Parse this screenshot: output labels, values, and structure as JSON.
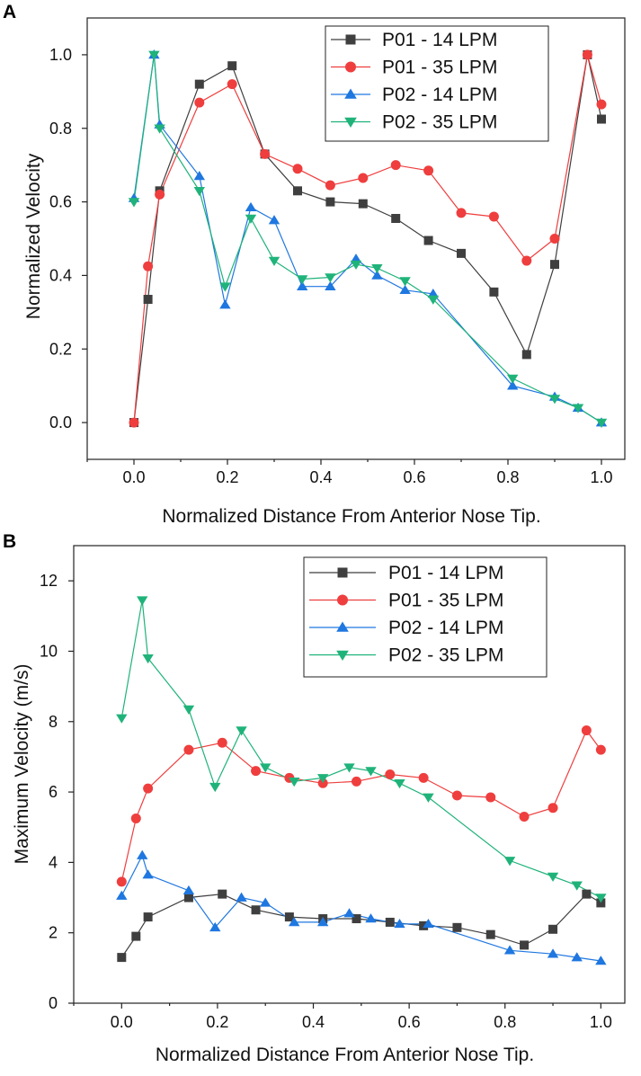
{
  "chart_data": [
    {
      "panel": "A",
      "type": "line",
      "xlabel": "Normalized Distance From Anterior Nose Tip.",
      "ylabel": "Normalized Velocity",
      "xlim": [
        -0.1,
        1.05
      ],
      "ylim": [
        -0.1,
        1.1
      ],
      "xticks": [
        "0.0",
        "0.2",
        "0.4",
        "0.6",
        "0.8",
        "1.0"
      ],
      "yticks": [
        "0.0",
        "0.2",
        "0.4",
        "0.6",
        "0.8",
        "1.0"
      ],
      "xtick_values": [
        0,
        0.2,
        0.4,
        0.6,
        0.8,
        1.0
      ],
      "ytick_values": [
        0,
        0.2,
        0.4,
        0.6,
        0.8,
        1.0
      ],
      "legend_position": "top-right",
      "series": [
        {
          "name": "P01 - 14 LPM",
          "color": "#3f3f3f",
          "marker": "square",
          "x": [
            0.0,
            0.03,
            0.055,
            0.14,
            0.21,
            0.28,
            0.35,
            0.42,
            0.49,
            0.56,
            0.63,
            0.7,
            0.77,
            0.84,
            0.9,
            0.97,
            1.0
          ],
          "y": [
            0.0,
            0.335,
            0.63,
            0.92,
            0.97,
            0.73,
            0.63,
            0.6,
            0.595,
            0.555,
            0.495,
            0.46,
            0.355,
            0.185,
            0.43,
            1.0,
            0.825
          ]
        },
        {
          "name": "P01 - 35 LPM",
          "color": "#ef3e3e",
          "marker": "circle",
          "x": [
            0.0,
            0.03,
            0.055,
            0.14,
            0.21,
            0.28,
            0.35,
            0.42,
            0.49,
            0.56,
            0.63,
            0.7,
            0.77,
            0.84,
            0.9,
            0.97,
            1.0
          ],
          "y": [
            0.0,
            0.425,
            0.62,
            0.87,
            0.92,
            0.73,
            0.69,
            0.645,
            0.665,
            0.7,
            0.685,
            0.57,
            0.56,
            0.44,
            0.5,
            1.0,
            0.865
          ]
        },
        {
          "name": "P02 - 14 LPM",
          "color": "#1f77e0",
          "marker": "triangle-up",
          "x": [
            0.0,
            0.043,
            0.055,
            0.14,
            0.195,
            0.25,
            0.3,
            0.36,
            0.42,
            0.475,
            0.52,
            0.58,
            0.64,
            0.81,
            0.9,
            0.95,
            1.0
          ],
          "y": [
            0.61,
            1.0,
            0.81,
            0.67,
            0.32,
            0.585,
            0.55,
            0.37,
            0.37,
            0.445,
            0.4,
            0.36,
            0.35,
            0.1,
            0.07,
            0.04,
            0.0
          ]
        },
        {
          "name": "P02 - 35 LPM",
          "color": "#1fb37a",
          "marker": "triangle-down",
          "x": [
            0.0,
            0.043,
            0.055,
            0.14,
            0.195,
            0.25,
            0.3,
            0.36,
            0.42,
            0.475,
            0.52,
            0.58,
            0.64,
            0.81,
            0.9,
            0.95,
            1.0
          ],
          "y": [
            0.6,
            1.0,
            0.8,
            0.63,
            0.37,
            0.555,
            0.44,
            0.39,
            0.395,
            0.43,
            0.42,
            0.385,
            0.335,
            0.12,
            0.065,
            0.04,
            0.0
          ]
        }
      ]
    },
    {
      "panel": "B",
      "type": "line",
      "xlabel": "Normalized Distance From Anterior Nose Tip.",
      "ylabel": "Maximum Velocity  (m/s)",
      "xlim": [
        -0.1,
        1.05
      ],
      "ylim": [
        0,
        13
      ],
      "xticks": [
        "0.0",
        "0.2",
        "0.4",
        "0.6",
        "0.8",
        "1.0"
      ],
      "yticks": [
        "0",
        "2",
        "4",
        "6",
        "8",
        "10",
        "12"
      ],
      "xtick_values": [
        0,
        0.2,
        0.4,
        0.6,
        0.8,
        1.0
      ],
      "ytick_values": [
        0,
        2,
        4,
        6,
        8,
        10,
        12
      ],
      "legend_position": "top-right",
      "series": [
        {
          "name": "P01 - 14 LPM",
          "color": "#3f3f3f",
          "marker": "square",
          "x": [
            0.0,
            0.03,
            0.055,
            0.14,
            0.21,
            0.28,
            0.35,
            0.42,
            0.49,
            0.56,
            0.63,
            0.7,
            0.77,
            0.84,
            0.9,
            0.97,
            1.0
          ],
          "y": [
            1.3,
            1.9,
            2.45,
            3.0,
            3.1,
            2.65,
            2.45,
            2.4,
            2.4,
            2.3,
            2.2,
            2.15,
            1.95,
            1.65,
            2.1,
            3.1,
            2.85
          ]
        },
        {
          "name": "P01 - 35 LPM",
          "color": "#ef3e3e",
          "marker": "circle",
          "x": [
            0.0,
            0.03,
            0.055,
            0.14,
            0.21,
            0.28,
            0.35,
            0.42,
            0.49,
            0.56,
            0.63,
            0.7,
            0.77,
            0.84,
            0.9,
            0.97,
            1.0
          ],
          "y": [
            3.45,
            5.25,
            6.1,
            7.2,
            7.4,
            6.6,
            6.4,
            6.25,
            6.3,
            6.5,
            6.4,
            5.9,
            5.85,
            5.3,
            5.55,
            7.75,
            7.2
          ]
        },
        {
          "name": "P02 - 14 LPM",
          "color": "#1f77e0",
          "marker": "triangle-up",
          "x": [
            0.0,
            0.043,
            0.055,
            0.14,
            0.195,
            0.25,
            0.3,
            0.36,
            0.42,
            0.475,
            0.52,
            0.58,
            0.64,
            0.81,
            0.9,
            0.95,
            1.0
          ],
          "y": [
            3.05,
            4.2,
            3.65,
            3.2,
            2.15,
            3.0,
            2.85,
            2.3,
            2.3,
            2.55,
            2.4,
            2.25,
            2.25,
            1.5,
            1.4,
            1.3,
            1.2
          ]
        },
        {
          "name": "P02 - 35 LPM",
          "color": "#1fb37a",
          "marker": "triangle-down",
          "x": [
            0.0,
            0.043,
            0.055,
            0.14,
            0.195,
            0.25,
            0.3,
            0.36,
            0.42,
            0.475,
            0.52,
            0.58,
            0.64,
            0.81,
            0.9,
            0.95,
            1.0
          ],
          "y": [
            8.1,
            11.45,
            9.8,
            8.35,
            6.15,
            7.75,
            6.7,
            6.3,
            6.4,
            6.7,
            6.6,
            6.25,
            5.85,
            4.05,
            3.6,
            3.35,
            3.0
          ]
        }
      ]
    }
  ]
}
